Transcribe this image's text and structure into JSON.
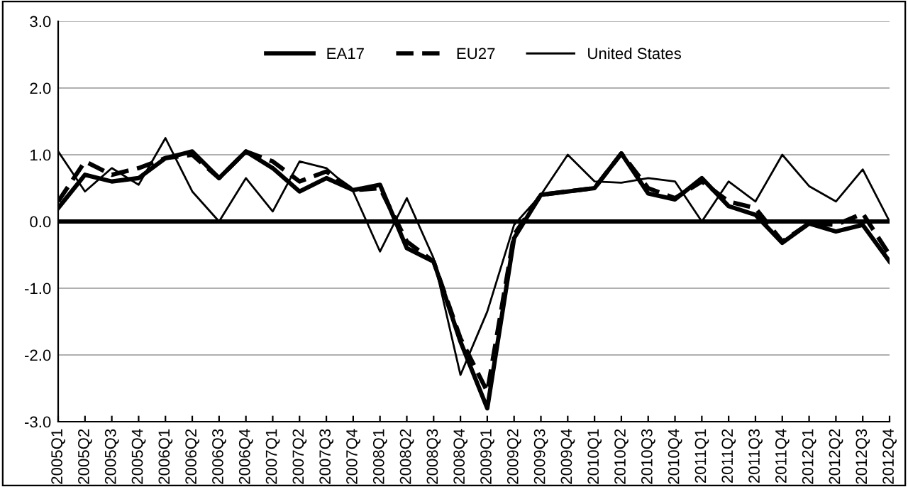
{
  "chart_data": {
    "type": "line",
    "categories": [
      "2005Q1",
      "2005Q2",
      "2005Q3",
      "2005Q4",
      "2006Q1",
      "2006Q2",
      "2006Q3",
      "2006Q4",
      "2007Q1",
      "2007Q2",
      "2007Q3",
      "2007Q4",
      "2008Q1",
      "2008Q2",
      "2008Q3",
      "2008Q4",
      "2009Q1",
      "2009Q2",
      "2009Q3",
      "2009Q4",
      "2010Q1",
      "2010Q2",
      "2010Q3",
      "2010Q4",
      "2011Q1",
      "2011Q2",
      "2011Q3",
      "2011Q4",
      "2012Q1",
      "2012Q2",
      "2012Q3",
      "2012Q4"
    ],
    "series": [
      {
        "name": "EA17",
        "color": "#000000",
        "line_style": "solid",
        "values": [
          0.2,
          0.7,
          0.6,
          0.65,
          0.95,
          1.05,
          0.65,
          1.05,
          0.8,
          0.45,
          0.65,
          0.47,
          0.55,
          -0.4,
          -0.6,
          -1.8,
          -2.8,
          -0.25,
          0.4,
          0.45,
          0.5,
          1.02,
          0.42,
          0.33,
          0.65,
          0.23,
          0.1,
          -0.32,
          -0.03,
          -0.15,
          -0.05,
          -0.6
        ]
      },
      {
        "name": "EU27",
        "color": "#000000",
        "line_style": "dashed",
        "values": [
          0.3,
          0.9,
          0.7,
          0.8,
          0.95,
          1.0,
          0.65,
          1.05,
          0.9,
          0.6,
          0.75,
          0.47,
          0.5,
          -0.3,
          -0.6,
          -1.75,
          -2.55,
          -0.2,
          0.4,
          0.45,
          0.5,
          1.02,
          0.5,
          0.35,
          0.6,
          0.3,
          0.2,
          -0.3,
          -0.03,
          -0.05,
          0.12,
          -0.5
        ]
      },
      {
        "name": "United States",
        "color": "#000000",
        "line_style": "solid",
        "values": [
          1.05,
          0.45,
          0.8,
          0.55,
          1.25,
          0.45,
          0.0,
          0.65,
          0.15,
          0.9,
          0.8,
          0.45,
          -0.45,
          0.35,
          -0.55,
          -2.3,
          -1.35,
          -0.05,
          0.4,
          1.0,
          0.6,
          0.58,
          0.65,
          0.6,
          0.0,
          0.6,
          0.3,
          1.0,
          0.53,
          0.3,
          0.78,
          0.0
        ]
      }
    ],
    "ylim": [
      -3.0,
      3.0
    ],
    "yticks": [
      {
        "value": -3,
        "label": "-3.0"
      },
      {
        "value": -2,
        "label": "-2.0"
      },
      {
        "value": -1,
        "label": "-1.0"
      },
      {
        "value": 0,
        "label": "0.0"
      },
      {
        "value": 1,
        "label": "1.0"
      },
      {
        "value": 2,
        "label": "2.0"
      },
      {
        "value": 3,
        "label": "3.0"
      }
    ],
    "ref_lines": [
      {
        "axis": "y",
        "value": 0,
        "color": "#000000"
      }
    ],
    "grid": "y",
    "legend": "top",
    "marker": "none"
  }
}
